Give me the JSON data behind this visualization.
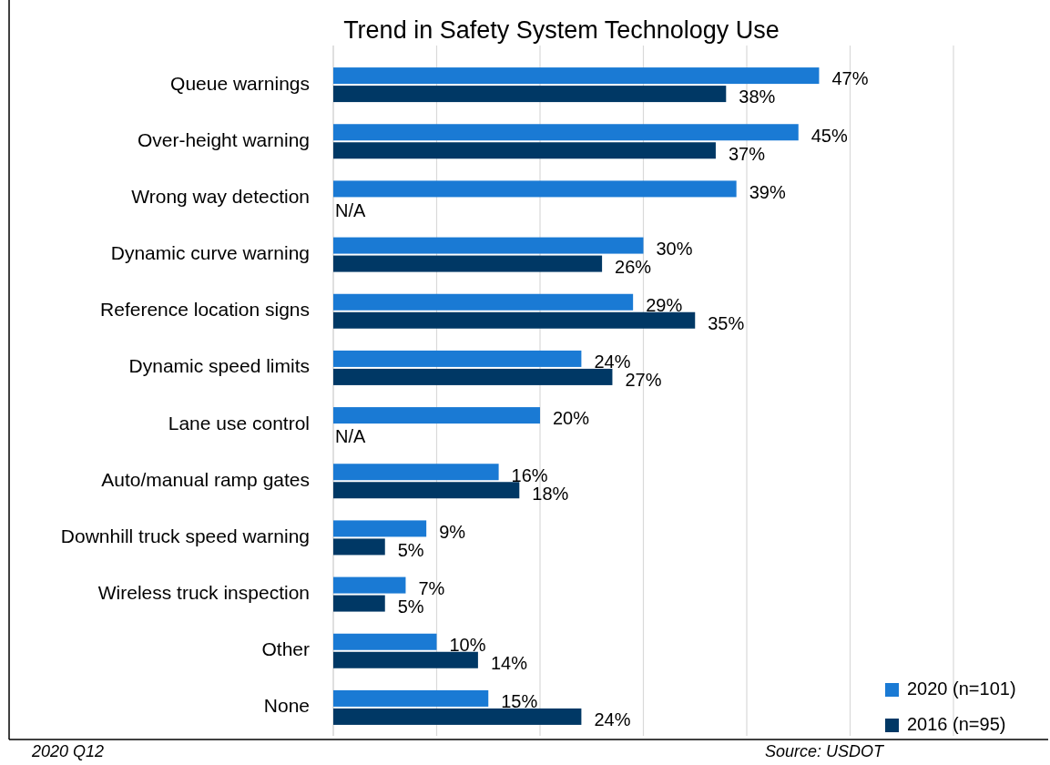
{
  "chart_data": {
    "type": "bar",
    "orientation": "horizontal",
    "title": "Trend in Safety System Technology Use",
    "categories": [
      "Queue warnings",
      "Over-height warning",
      "Wrong way detection",
      "Dynamic curve warning",
      "Reference location signs",
      "Dynamic speed limits",
      "Lane use control",
      "Auto/manual ramp gates ",
      "Downhill truck speed warning",
      "Wireless truck inspection",
      "Other",
      "None"
    ],
    "series": [
      {
        "name": "2020 (n=101)",
        "color": "#1a7ad4",
        "values": [
          47,
          45,
          39,
          30,
          29,
          24,
          20,
          16,
          9,
          7,
          10,
          15
        ],
        "value_labels": [
          "47%",
          "45%",
          "39%",
          "30%",
          "29%",
          "24%",
          "20%",
          "16%",
          "9%",
          "7%",
          "10%",
          "15%"
        ]
      },
      {
        "name": "2016 (n=95)",
        "color": "#003865",
        "values": [
          38,
          37,
          null,
          26,
          35,
          27,
          null,
          18,
          5,
          5,
          14,
          24
        ],
        "value_labels": [
          "38%",
          "37%",
          "N/A",
          "26%",
          "35%",
          "27%",
          "N/A",
          "18%",
          "5%",
          "5%",
          "14%",
          "24%"
        ]
      }
    ],
    "xlim": [
      0,
      60
    ],
    "xticks": [
      {
        "value": 0,
        "label": null
      },
      {
        "value": 10,
        "label": null
      },
      {
        "value": 20,
        "label": null
      },
      {
        "value": 30,
        "label": null
      },
      {
        "value": 40,
        "label": null
      },
      {
        "value": 50,
        "label": null
      },
      {
        "value": 60,
        "label": null
      }
    ],
    "grid": "x",
    "tick_labels": "y",
    "legend": "bottom right",
    "annotations": [
      "2020 Q12",
      "Source: USDOT"
    ]
  }
}
